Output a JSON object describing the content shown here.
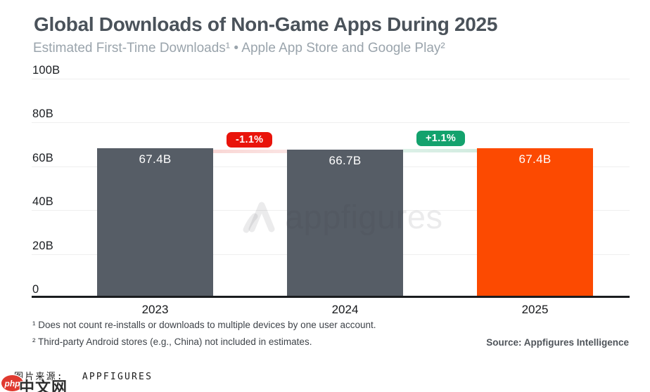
{
  "header": {
    "title": "Global Downloads of Non-Game Apps During 2025",
    "subtitle": "Estimated First-Time Downloads¹ • Apple App Store and Google Play²"
  },
  "chart_data": {
    "type": "bar",
    "title": "Global Downloads of Non-Game Apps During 2025",
    "subtitle": "Estimated First-Time Downloads¹ • Apple App Store and Google Play²",
    "categories": [
      "2023",
      "2024",
      "2025"
    ],
    "values": [
      67.4,
      66.7,
      67.4
    ],
    "value_labels": [
      "67.4B",
      "66.7B",
      "67.4B"
    ],
    "bar_colors": [
      "#565D66",
      "#565D66",
      "#FC4A01"
    ],
    "yticks": [
      "100B",
      "80B",
      "60B",
      "40B",
      "20B",
      "0"
    ],
    "ylim": [
      0,
      100
    ],
    "ylabel": "",
    "xlabel": "",
    "grid": true,
    "legend": "none",
    "deltas": [
      {
        "label": "-1.1%",
        "between": [
          "2023",
          "2024"
        ],
        "badge_color": "#E9140B",
        "band_color": "#F9D7D5"
      },
      {
        "label": "+1.1%",
        "between": [
          "2024",
          "2025"
        ],
        "badge_color": "#13A26D",
        "band_color": "#D5EDE2"
      }
    ]
  },
  "watermark": {
    "text": "appfigures"
  },
  "footer": {
    "footnote1": "¹ Does not count re-installs or downloads to multiple devices by one user account.",
    "footnote2": "² Third-party Android stores (e.g., China) not included in estimates.",
    "source": "Source: Appfigures Intelligence"
  },
  "bottom_bar": {
    "caption": "图片来源:",
    "caption_value": "APPFIGURES",
    "php_logo_text": "php",
    "php_logo_suffix": "中文网"
  },
  "colors": {
    "bar_gray": "#565D66",
    "bar_orange": "#FC4A01",
    "badge_red": "#E9140B",
    "badge_green": "#13A26D",
    "title_text": "#4A525A",
    "subtitle_text": "#9AA4AC",
    "gridline": "#EFEFEF",
    "axis_line": "#1A1C1F"
  }
}
